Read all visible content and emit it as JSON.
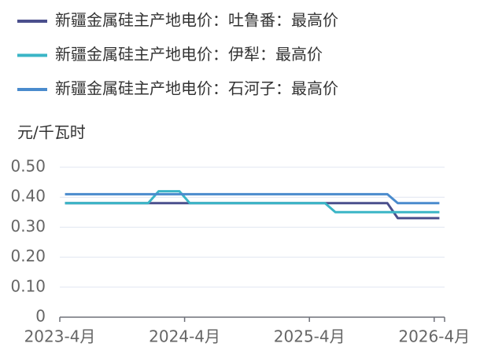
{
  "chart_data": {
    "type": "line",
    "y_axis_label": "元/千瓦时",
    "categories": [
      "2023-4月",
      null,
      null,
      null,
      null,
      null,
      null,
      null,
      null,
      null,
      null,
      null,
      "2024-4月",
      null,
      null,
      null,
      null,
      null,
      null,
      null,
      null,
      null,
      null,
      null,
      "2025-4月",
      null,
      null,
      null,
      null,
      null,
      null,
      null,
      null,
      null,
      null,
      null,
      "2026-4月"
    ],
    "series": [
      {
        "name": "新疆金属硅主产地电价：吐鲁番：最高价",
        "color": "#4a4f8c",
        "values": [
          0.38,
          0.38,
          0.38,
          0.38,
          0.38,
          0.38,
          0.38,
          0.38,
          0.38,
          0.38,
          0.38,
          0.38,
          0.38,
          0.38,
          0.38,
          0.38,
          0.38,
          0.38,
          0.38,
          0.38,
          0.38,
          0.38,
          0.38,
          0.38,
          0.38,
          0.38,
          0.38,
          0.38,
          0.38,
          0.38,
          0.38,
          0.38,
          0.33,
          0.33,
          0.33,
          0.33,
          0.33
        ]
      },
      {
        "name": "新疆金属硅主产地电价：伊犁：最高价",
        "color": "#3ab5c6",
        "values": [
          0.38,
          0.38,
          0.38,
          0.38,
          0.38,
          0.38,
          0.38,
          0.38,
          0.38,
          0.42,
          0.42,
          0.42,
          0.38,
          0.38,
          0.38,
          0.38,
          0.38,
          0.38,
          0.38,
          0.38,
          0.38,
          0.38,
          0.38,
          0.38,
          0.38,
          0.38,
          0.35,
          0.35,
          0.35,
          0.35,
          0.35,
          0.35,
          0.35,
          0.35,
          0.35,
          0.35,
          0.35
        ]
      },
      {
        "name": "新疆金属硅主产地电价：石河子：最高价",
        "color": "#4a8bcd",
        "values": [
          0.41,
          0.41,
          0.41,
          0.41,
          0.41,
          0.41,
          0.41,
          0.41,
          0.41,
          0.41,
          0.41,
          0.41,
          0.41,
          0.41,
          0.41,
          0.41,
          0.41,
          0.41,
          0.41,
          0.41,
          0.41,
          0.41,
          0.41,
          0.41,
          0.41,
          0.41,
          0.41,
          0.41,
          0.41,
          0.41,
          0.41,
          0.41,
          0.38,
          0.38,
          0.38,
          0.38,
          0.38
        ]
      }
    ],
    "ylim": [
      0,
      0.5
    ],
    "yticks": [
      0,
      {
        "value": 0.1,
        "label": "0.10"
      },
      {
        "value": 0.2,
        "label": "0.20"
      },
      {
        "value": 0.3,
        "label": "0.30"
      },
      {
        "value": 0.4,
        "label": "0.40"
      },
      {
        "value": 0.5,
        "label": "0.50"
      }
    ],
    "grid": true
  }
}
